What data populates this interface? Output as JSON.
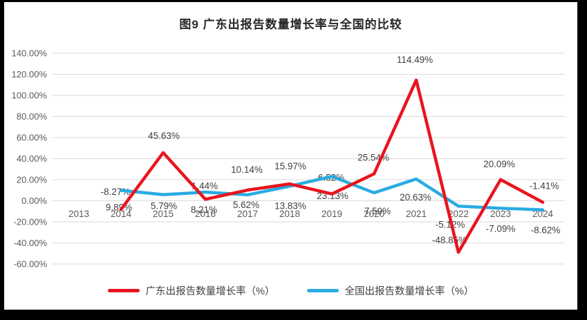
{
  "frame": {
    "background_color": "#000000",
    "canvas_color": "#ffffff"
  },
  "chart_data": {
    "type": "line",
    "title": "图9  广东出报告数量增长率与全国的比较",
    "categories": [
      "2013",
      "2014",
      "2015",
      "2016",
      "2017",
      "2018",
      "2019",
      "2020",
      "2021",
      "2022",
      "2023",
      "2024"
    ],
    "x": [
      2013,
      2014,
      2015,
      2016,
      2017,
      2018,
      2019,
      2020,
      2021,
      2022,
      2023,
      2024
    ],
    "series": [
      {
        "name": "广东出报告数量增长率（%）",
        "color": "#e8141e",
        "values": [
          null,
          -8.27,
          45.63,
          1.44,
          10.14,
          15.97,
          6.52,
          25.54,
          114.49,
          -48.85,
          20.09,
          -1.41
        ],
        "label_offsets": [
          null,
          [
            -8,
            -26
          ],
          [
            1,
            -25
          ],
          [
            -1,
            -20
          ],
          [
            -1,
            -30
          ],
          [
            1,
            -26
          ],
          [
            -1,
            -24
          ],
          [
            -1,
            -24
          ],
          [
            -2,
            -30
          ],
          [
            -13,
            -18
          ],
          [
            -2,
            -23
          ],
          [
            2,
            -24
          ]
        ]
      },
      {
        "name": "全国出报告数量增长率（%）",
        "color": "#29abe2",
        "values": [
          null,
          9.89,
          5.79,
          8.21,
          5.62,
          13.83,
          23.13,
          7.59,
          20.63,
          -5.12,
          -7.09,
          -8.62
        ],
        "label_offsets": [
          null,
          [
            -3,
            24
          ],
          [
            1,
            16
          ],
          [
            -2,
            25
          ],
          [
            -2,
            14
          ],
          [
            1,
            28
          ],
          [
            1,
            28
          ],
          [
            5,
            26
          ],
          [
            -1,
            26
          ],
          [
            -12,
            26
          ],
          [
            0,
            29
          ],
          [
            4,
            29
          ]
        ]
      }
    ],
    "y_axis": {
      "min": -60,
      "max": 140,
      "step": 20,
      "tick_labels": [
        "140.00%",
        "120.00%",
        "100.00%",
        "80.00%",
        "60.00%",
        "40.00%",
        "20.00%",
        "0.00%",
        "-20.00%",
        "-40.00%",
        "-60.00%"
      ]
    },
    "grid": true,
    "legend_position": "bottom",
    "data_label_format": "0.00%",
    "colors": {
      "gridline": "#d9d9d9",
      "axis_tick_text": "#595959",
      "data_label_text": "#3f3f3f",
      "title_text": "#262626"
    }
  }
}
